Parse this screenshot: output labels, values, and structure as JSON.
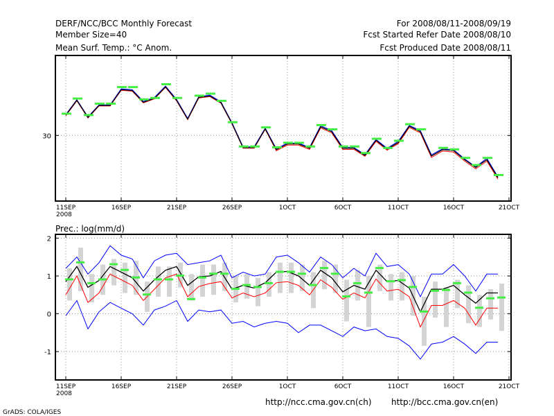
{
  "header": {
    "title": "DERF/NCC/BCC Monthly Forecast",
    "member_size": "Member Size=40",
    "variable": "Mean Surf. Temp.: °C Anom.",
    "period": "For 2008/08/11-2008/09/19",
    "start_date": "Fcst Started Refer Date 2008/08/10",
    "produced_date": "Fcst Produced Date 2008/08/11"
  },
  "footer": {
    "url_ch": "http://ncc.cma.gov.cn(ch)",
    "url_en": "http://bcc.cma.gov.cn(en)",
    "credit": "GrADS: COLA/IGES"
  },
  "colors": {
    "ensemble_mean": "#000000",
    "upper_spread": "#0000ff",
    "lower_spread": "#ff0000",
    "observed_marker": "#44ee44",
    "grid": "#909090",
    "spread_bar": "#d4d4d4"
  },
  "chart_data": [
    {
      "type": "line",
      "title": "Mean Surf. Temp.: °C Anom.",
      "x_range": [
        0,
        40
      ],
      "x_ticks": [
        {
          "day": 0,
          "label": "11SEP"
        },
        {
          "day": 5,
          "label": "16SEP"
        },
        {
          "day": 10,
          "label": "21SEP"
        },
        {
          "day": 15,
          "label": "26SEP"
        },
        {
          "day": 20,
          "label": "1OCT"
        },
        {
          "day": 25,
          "label": "6OCT"
        },
        {
          "day": 30,
          "label": "11OCT"
        },
        {
          "day": 35,
          "label": "16OCT"
        },
        {
          "day": 40,
          "label": "21OCT"
        }
      ],
      "year_label": "2008",
      "ylim": [
        27.7,
        32.8
      ],
      "y_ticks": [
        {
          "value": 30,
          "label": "30"
        }
      ],
      "series": [
        {
          "name": "Ensemble mean",
          "values": [
            30.71,
            31.23,
            30.63,
            31.05,
            31.05,
            31.6,
            31.57,
            31.16,
            31.3,
            31.7,
            31.23,
            30.57,
            31.33,
            31.38,
            31.15,
            30.42,
            29.57,
            29.57,
            30.23,
            29.5,
            29.7,
            29.7,
            29.55,
            30.3,
            30.13,
            29.55,
            29.55,
            29.3,
            29.83,
            29.52,
            29.75,
            30.32,
            30.13,
            29.28,
            29.5,
            29.47,
            29.15,
            28.88,
            29.15,
            28.52
          ],
          "markers": [
            30.75,
            31.28,
            30.7,
            31.1,
            31.1,
            31.68,
            31.68,
            31.25,
            31.3,
            31.78,
            31.3,
            null,
            31.38,
            31.45,
            31.2,
            30.45,
            29.6,
            29.6,
            30.27,
            29.57,
            29.73,
            29.73,
            29.6,
            30.35,
            30.2,
            29.6,
            29.6,
            29.37,
            29.87,
            29.55,
            29.8,
            30.38,
            30.2,
            null,
            29.55,
            29.5,
            29.2,
            28.95,
            29.2,
            28.6
          ]
        },
        {
          "name": "Upper members",
          "values": [
            30.73,
            31.25,
            30.65,
            31.07,
            31.07,
            31.63,
            31.6,
            31.19,
            31.33,
            31.73,
            31.26,
            30.6,
            31.36,
            31.41,
            31.18,
            30.45,
            29.6,
            29.6,
            30.26,
            29.53,
            29.73,
            29.73,
            29.58,
            30.34,
            30.17,
            29.58,
            29.58,
            29.33,
            29.86,
            29.55,
            29.79,
            30.35,
            30.17,
            29.32,
            29.53,
            29.5,
            29.18,
            28.9,
            29.2,
            28.55
          ]
        },
        {
          "name": "Lower members",
          "values": [
            30.69,
            31.21,
            30.61,
            31.03,
            31.03,
            31.58,
            31.55,
            31.14,
            31.28,
            31.68,
            31.21,
            30.55,
            31.31,
            31.36,
            31.13,
            30.4,
            29.55,
            29.55,
            30.21,
            29.46,
            29.66,
            29.66,
            29.51,
            30.26,
            30.09,
            29.51,
            29.51,
            29.27,
            29.79,
            29.48,
            29.71,
            30.28,
            30.09,
            29.23,
            29.45,
            29.42,
            29.1,
            28.83,
            29.1,
            28.47
          ]
        }
      ]
    },
    {
      "type": "line",
      "title": "Prec.: log(mm/d)",
      "x_range": [
        0,
        40
      ],
      "x_ticks": [
        {
          "day": 0,
          "label": "11SEP"
        },
        {
          "day": 5,
          "label": "16SEP"
        },
        {
          "day": 10,
          "label": "21SEP"
        },
        {
          "day": 15,
          "label": "26SEP"
        },
        {
          "day": 20,
          "label": "1OCT"
        },
        {
          "day": 25,
          "label": "6OCT"
        },
        {
          "day": 30,
          "label": "11OCT"
        },
        {
          "day": 35,
          "label": "16OCT"
        },
        {
          "day": 40,
          "label": "21OCT"
        }
      ],
      "year_label": "2008",
      "ylim": [
        -1.75,
        2.1
      ],
      "y_ticks": [
        {
          "value": 2,
          "label": "2"
        },
        {
          "value": 1,
          "label": "1"
        },
        {
          "value": 0,
          "label": "0"
        },
        {
          "value": -1,
          "label": "-1"
        }
      ],
      "series": [
        {
          "name": "Ensemble mean",
          "values": [
            0.85,
            1.25,
            0.7,
            0.88,
            1.25,
            1.1,
            0.95,
            0.6,
            0.9,
            1.15,
            1.25,
            0.75,
            0.98,
            1.0,
            1.12,
            0.65,
            0.75,
            0.68,
            0.82,
            1.1,
            1.12,
            1.0,
            0.75,
            1.15,
            0.95,
            0.58,
            0.75,
            0.65,
            1.15,
            0.85,
            0.88,
            0.68,
            0.05,
            0.65,
            0.65,
            0.75,
            0.5,
            0.28,
            0.55,
            0.55
          ]
        },
        {
          "name": "Maximum",
          "values": [
            1.2,
            1.5,
            1.05,
            1.35,
            1.8,
            1.55,
            1.45,
            0.95,
            1.4,
            1.55,
            1.6,
            1.3,
            1.35,
            1.4,
            1.55,
            0.95,
            1.1,
            1.0,
            1.05,
            1.5,
            1.55,
            1.35,
            1.1,
            1.5,
            1.3,
            0.95,
            1.2,
            1.0,
            1.6,
            1.25,
            1.3,
            1.05,
            0.45,
            1.05,
            1.05,
            1.3,
            1.0,
            0.6,
            1.05,
            1.05
          ]
        },
        {
          "name": "Minimum",
          "values": [
            -0.05,
            0.35,
            -0.4,
            0.05,
            0.3,
            0.15,
            0.0,
            -0.3,
            0.1,
            0.2,
            0.35,
            -0.2,
            0.1,
            0.05,
            0.1,
            -0.25,
            -0.2,
            -0.35,
            -0.25,
            -0.2,
            -0.25,
            -0.5,
            -0.3,
            -0.3,
            -0.45,
            -0.6,
            -0.35,
            -0.45,
            -0.4,
            -0.6,
            -0.65,
            -0.85,
            -1.2,
            -0.8,
            -0.75,
            -0.6,
            -0.8,
            -1.05,
            -0.75,
            -0.75
          ]
        },
        {
          "name": "Lower members",
          "values": [
            0.5,
            1.0,
            0.3,
            0.55,
            1.05,
            0.9,
            0.75,
            0.35,
            0.65,
            0.95,
            1.05,
            0.45,
            0.72,
            0.8,
            0.85,
            0.42,
            0.55,
            0.45,
            0.55,
            0.82,
            0.85,
            0.75,
            0.5,
            0.9,
            0.7,
            0.38,
            0.55,
            0.42,
            0.92,
            0.6,
            0.65,
            0.45,
            -0.35,
            0.22,
            0.22,
            0.35,
            0.15,
            -0.3,
            0.15,
            0.15
          ]
        }
      ],
      "bars": {
        "name": "Member spread",
        "low": [
          0.35,
          0.6,
          0.3,
          0.5,
          0.75,
          0.55,
          0.5,
          0.05,
          0.45,
          0.45,
          0.7,
          0.35,
          0.45,
          0.5,
          0.6,
          0.3,
          0.4,
          0.2,
          0.45,
          0.55,
          0.55,
          0.6,
          0.15,
          0.65,
          0.55,
          -0.2,
          0.35,
          -0.35,
          0.6,
          0.35,
          0.35,
          -0.05,
          -0.85,
          -0.1,
          -0.35,
          0.15,
          -0.25,
          -0.35,
          -0.15,
          -0.45
        ],
        "high": [
          1.2,
          1.75,
          1.05,
          1.3,
          1.45,
          1.35,
          1.4,
          0.85,
          1.25,
          1.25,
          1.35,
          1.05,
          1.3,
          1.3,
          1.35,
          1.0,
          1.05,
          0.95,
          1.1,
          1.35,
          1.35,
          1.3,
          1.1,
          1.4,
          1.3,
          0.9,
          1.15,
          1.0,
          1.3,
          1.05,
          1.1,
          1.0,
          0.45,
          0.85,
          0.7,
          0.9,
          0.75,
          0.5,
          0.65,
          0.8
        ]
      },
      "markers": [
        0.9,
        1.35,
        0.8,
        0.9,
        1.3,
        1.15,
        0.95,
        0.5,
        0.9,
        0.9,
        1.0,
        0.38,
        0.95,
        1.05,
        1.05,
        0.65,
        0.75,
        0.7,
        0.8,
        1.1,
        1.1,
        1.05,
        0.75,
        1.2,
        1.05,
        0.45,
        0.8,
        0.55,
        1.2,
        0.85,
        0.88,
        0.7,
        0.05,
        0.6,
        0.62,
        0.8,
        0.55,
        0.15,
        0.4,
        0.42
      ]
    }
  ]
}
